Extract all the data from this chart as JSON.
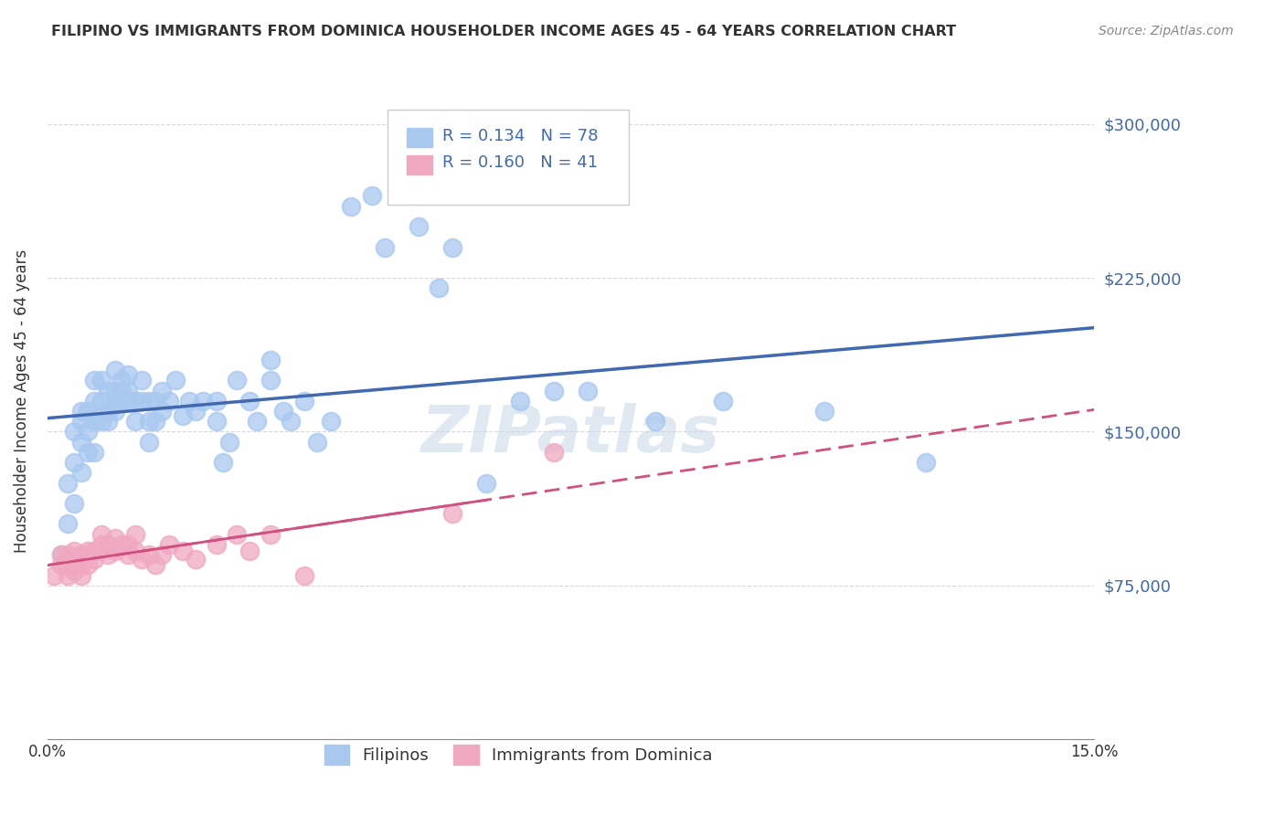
{
  "title": "FILIPINO VS IMMIGRANTS FROM DOMINICA HOUSEHOLDER INCOME AGES 45 - 64 YEARS CORRELATION CHART",
  "source": "Source: ZipAtlas.com",
  "ylabel": "Householder Income Ages 45 - 64 years",
  "xlabel_ticks": [
    "0.0%",
    "15.0%"
  ],
  "ytick_labels": [
    "$75,000",
    "$150,000",
    "$225,000",
    "$300,000"
  ],
  "ytick_values": [
    75000,
    150000,
    225000,
    300000
  ],
  "ylim": [
    0,
    330000
  ],
  "xlim": [
    0,
    0.16
  ],
  "legend_r_filipino": "R = 0.134",
  "legend_n_filipino": "N = 78",
  "legend_r_dominica": "R = 0.160",
  "legend_n_dominica": "N = 41",
  "filipino_color": "#a8c8f0",
  "dominica_color": "#f0a8c0",
  "trendline_filipino_color": "#4169b0",
  "trendline_dominica_color": "#d05080",
  "watermark": "ZIPatlas",
  "filipino_scatter_x": [
    0.002,
    0.003,
    0.003,
    0.004,
    0.004,
    0.004,
    0.005,
    0.005,
    0.005,
    0.005,
    0.006,
    0.006,
    0.006,
    0.007,
    0.007,
    0.007,
    0.007,
    0.008,
    0.008,
    0.008,
    0.009,
    0.009,
    0.009,
    0.01,
    0.01,
    0.01,
    0.01,
    0.011,
    0.011,
    0.011,
    0.012,
    0.012,
    0.012,
    0.013,
    0.013,
    0.014,
    0.014,
    0.015,
    0.015,
    0.015,
    0.016,
    0.016,
    0.017,
    0.017,
    0.018,
    0.019,
    0.02,
    0.021,
    0.022,
    0.023,
    0.025,
    0.025,
    0.026,
    0.027,
    0.028,
    0.03,
    0.031,
    0.033,
    0.033,
    0.035,
    0.036,
    0.038,
    0.04,
    0.042,
    0.045,
    0.048,
    0.05,
    0.055,
    0.058,
    0.06,
    0.065,
    0.07,
    0.075,
    0.08,
    0.09,
    0.1,
    0.115,
    0.13
  ],
  "filipino_scatter_y": [
    90000,
    105000,
    125000,
    115000,
    135000,
    150000,
    130000,
    145000,
    155000,
    160000,
    140000,
    150000,
    160000,
    140000,
    155000,
    165000,
    175000,
    155000,
    165000,
    175000,
    155000,
    160000,
    170000,
    160000,
    165000,
    170000,
    180000,
    165000,
    170000,
    175000,
    165000,
    170000,
    178000,
    155000,
    165000,
    165000,
    175000,
    145000,
    155000,
    165000,
    155000,
    165000,
    160000,
    170000,
    165000,
    175000,
    158000,
    165000,
    160000,
    165000,
    155000,
    165000,
    135000,
    145000,
    175000,
    165000,
    155000,
    175000,
    185000,
    160000,
    155000,
    165000,
    145000,
    155000,
    260000,
    265000,
    240000,
    250000,
    220000,
    240000,
    125000,
    165000,
    170000,
    170000,
    155000,
    165000,
    160000,
    135000
  ],
  "dominica_scatter_x": [
    0.001,
    0.002,
    0.002,
    0.003,
    0.003,
    0.003,
    0.004,
    0.004,
    0.004,
    0.005,
    0.005,
    0.005,
    0.006,
    0.006,
    0.007,
    0.007,
    0.008,
    0.008,
    0.009,
    0.009,
    0.01,
    0.01,
    0.011,
    0.012,
    0.012,
    0.013,
    0.013,
    0.014,
    0.015,
    0.016,
    0.017,
    0.018,
    0.02,
    0.022,
    0.025,
    0.028,
    0.03,
    0.033,
    0.038,
    0.06,
    0.075
  ],
  "dominica_scatter_y": [
    80000,
    85000,
    90000,
    80000,
    85000,
    90000,
    82000,
    88000,
    92000,
    80000,
    85000,
    90000,
    85000,
    92000,
    88000,
    92000,
    95000,
    100000,
    90000,
    95000,
    92000,
    98000,
    95000,
    90000,
    95000,
    92000,
    100000,
    88000,
    90000,
    85000,
    90000,
    95000,
    92000,
    88000,
    95000,
    100000,
    92000,
    100000,
    80000,
    110000,
    140000
  ]
}
